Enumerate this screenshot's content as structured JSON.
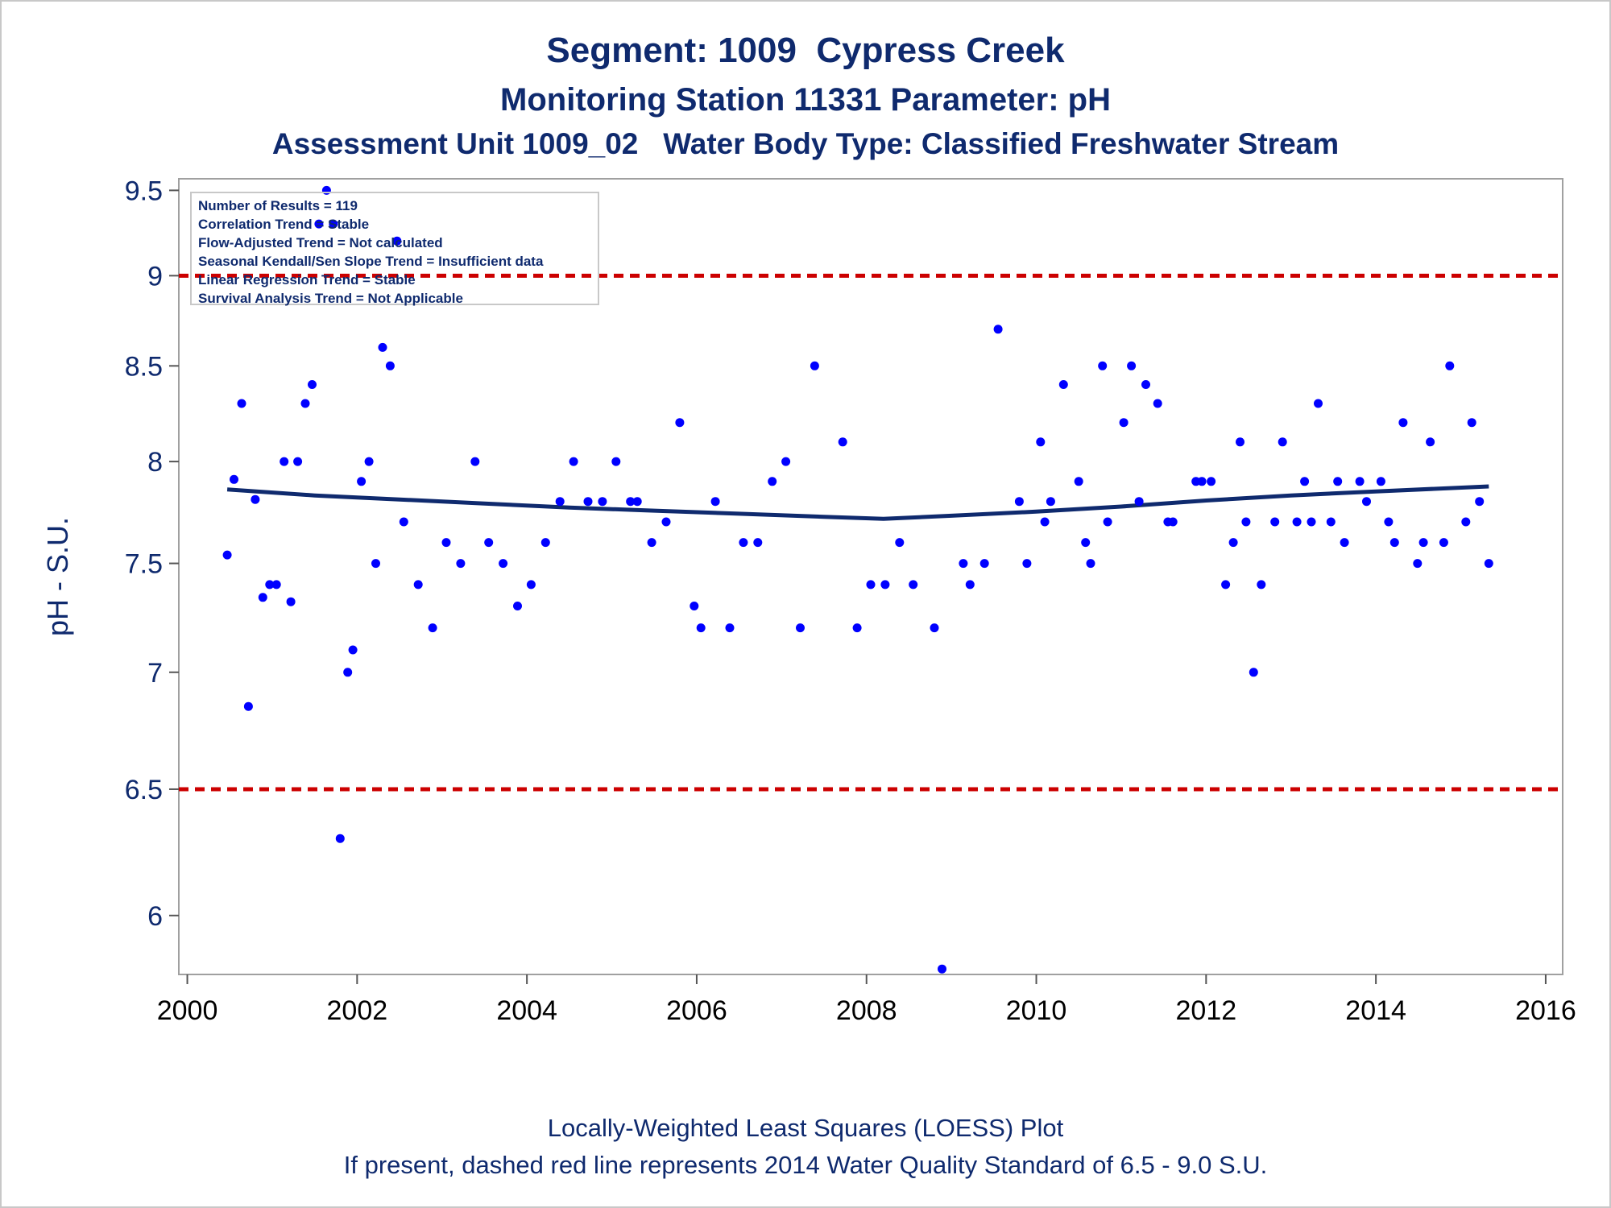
{
  "chart_data": {
    "type": "scatter",
    "title": "Segment: 1009  Cypress Creek",
    "subtitle": "Monitoring Station 11331 Parameter: pH",
    "subtitle2": "Assessment Unit 1009_02   Water Body Type: Classified Freshwater Stream",
    "ylabel": "pH - S.U.",
    "xlabel": "",
    "footnote1": "Locally-Weighted Least Squares (LOESS) Plot",
    "footnote2": "If present, dashed red line represents 2014 Water Quality Standard of 6.5 - 9.0 S.U.",
    "y_scale": "log",
    "xlim": [
      1999.9,
      2016.2
    ],
    "ylim": [
      5.78,
      9.57
    ],
    "x_ticks": [
      2000,
      2002,
      2004,
      2006,
      2008,
      2010,
      2012,
      2014,
      2016
    ],
    "y_ticks": [
      6,
      6.5,
      7,
      7.5,
      8,
      8.5,
      9,
      9.5
    ],
    "y_tick_labels": [
      "6",
      "6.5",
      "7",
      "7.5",
      "8",
      "8.5",
      "9",
      "9.5"
    ],
    "x_tick_labels": [
      "2000",
      "2002",
      "2004",
      "2006",
      "2008",
      "2010",
      "2012",
      "2014",
      "2016"
    ],
    "grid": false,
    "reference_lines": [
      {
        "y": 9.0,
        "style": "dashed",
        "color": "#cc0000"
      },
      {
        "y": 6.5,
        "style": "dashed",
        "color": "#cc0000"
      }
    ],
    "stats_box": {
      "placement": "top-left",
      "lines": [
        "Number of Results = 119",
        "Correlation Trend = Stable",
        "Flow-Adjusted Trend = Not calculated",
        "Seasonal Kendall/Sen Slope Trend = Insufficient data",
        "Linear Regression Trend = Stable",
        "Survival Analysis Trend = Not Applicable"
      ]
    },
    "colors": {
      "points": "#0000ff",
      "loess": "#0f2a6e",
      "standard": "#cc0000",
      "text": "#0f2a6e"
    },
    "series": [
      {
        "type": "scatter",
        "points": [
          [
            2000.47,
            7.54
          ],
          [
            2000.55,
            7.91
          ],
          [
            2000.64,
            8.3
          ],
          [
            2000.72,
            6.85
          ],
          [
            2000.8,
            7.81
          ],
          [
            2000.89,
            7.34
          ],
          [
            2000.97,
            7.4
          ],
          [
            2001.05,
            7.4
          ],
          [
            2001.14,
            8.0
          ],
          [
            2001.22,
            7.32
          ],
          [
            2001.3,
            8.0
          ],
          [
            2001.39,
            8.3
          ],
          [
            2001.47,
            8.4
          ],
          [
            2001.55,
            9.3
          ],
          [
            2001.64,
            9.5
          ],
          [
            2001.72,
            9.3
          ],
          [
            2001.8,
            6.3
          ],
          [
            2001.89,
            7.0
          ],
          [
            2001.95,
            7.1
          ],
          [
            2002.05,
            7.9
          ],
          [
            2002.14,
            8.0
          ],
          [
            2002.22,
            7.5
          ],
          [
            2002.3,
            8.6
          ],
          [
            2002.39,
            8.5
          ],
          [
            2002.47,
            9.2
          ],
          [
            2002.55,
            7.7
          ],
          [
            2002.72,
            7.4
          ],
          [
            2002.89,
            7.2
          ],
          [
            2003.05,
            7.6
          ],
          [
            2003.22,
            7.5
          ],
          [
            2003.39,
            8.0
          ],
          [
            2003.55,
            7.6
          ],
          [
            2003.72,
            7.5
          ],
          [
            2003.89,
            7.3
          ],
          [
            2004.05,
            7.4
          ],
          [
            2004.22,
            7.6
          ],
          [
            2004.39,
            7.8
          ],
          [
            2004.55,
            8.0
          ],
          [
            2004.72,
            7.8
          ],
          [
            2004.89,
            7.8
          ],
          [
            2005.05,
            8.0
          ],
          [
            2005.22,
            7.8
          ],
          [
            2005.3,
            7.8
          ],
          [
            2005.47,
            7.6
          ],
          [
            2005.64,
            7.7
          ],
          [
            2005.8,
            8.2
          ],
          [
            2005.97,
            7.3
          ],
          [
            2006.05,
            7.2
          ],
          [
            2006.22,
            7.8
          ],
          [
            2006.39,
            7.2
          ],
          [
            2006.55,
            7.6
          ],
          [
            2006.72,
            7.6
          ],
          [
            2006.89,
            7.9
          ],
          [
            2007.05,
            8.0
          ],
          [
            2007.22,
            7.2
          ],
          [
            2007.39,
            8.5
          ],
          [
            2007.72,
            8.1
          ],
          [
            2007.89,
            7.2
          ],
          [
            2008.05,
            7.4
          ],
          [
            2008.22,
            7.4
          ],
          [
            2008.39,
            7.6
          ],
          [
            2008.55,
            7.4
          ],
          [
            2008.8,
            7.2
          ],
          [
            2008.89,
            5.8
          ],
          [
            2009.14,
            7.5
          ],
          [
            2009.22,
            7.4
          ],
          [
            2009.39,
            7.5
          ],
          [
            2009.55,
            8.7
          ],
          [
            2009.8,
            7.8
          ],
          [
            2009.89,
            7.5
          ],
          [
            2010.05,
            8.1
          ],
          [
            2010.1,
            7.7
          ],
          [
            2010.17,
            7.8
          ],
          [
            2010.32,
            8.4
          ],
          [
            2010.5,
            7.9
          ],
          [
            2010.58,
            7.6
          ],
          [
            2010.64,
            7.5
          ],
          [
            2010.78,
            8.5
          ],
          [
            2010.84,
            7.7
          ],
          [
            2011.03,
            8.2
          ],
          [
            2011.12,
            8.5
          ],
          [
            2011.21,
            7.8
          ],
          [
            2011.29,
            8.4
          ],
          [
            2011.43,
            8.3
          ],
          [
            2011.55,
            7.7
          ],
          [
            2011.61,
            7.7
          ],
          [
            2011.88,
            7.9
          ],
          [
            2011.95,
            7.9
          ],
          [
            2012.06,
            7.9
          ],
          [
            2012.23,
            7.4
          ],
          [
            2012.32,
            7.6
          ],
          [
            2012.4,
            8.1
          ],
          [
            2012.47,
            7.7
          ],
          [
            2012.56,
            7.0
          ],
          [
            2012.65,
            7.4
          ],
          [
            2012.81,
            7.7
          ],
          [
            2012.9,
            8.1
          ],
          [
            2013.07,
            7.7
          ],
          [
            2013.16,
            7.9
          ],
          [
            2013.24,
            7.7
          ],
          [
            2013.32,
            8.3
          ],
          [
            2013.47,
            7.7
          ],
          [
            2013.55,
            7.9
          ],
          [
            2013.63,
            7.6
          ],
          [
            2013.81,
            7.9
          ],
          [
            2013.89,
            7.8
          ],
          [
            2014.06,
            7.9
          ],
          [
            2014.15,
            7.7
          ],
          [
            2014.22,
            7.6
          ],
          [
            2014.32,
            8.2
          ],
          [
            2014.49,
            7.5
          ],
          [
            2014.56,
            7.6
          ],
          [
            2014.64,
            8.1
          ],
          [
            2014.8,
            7.6
          ],
          [
            2014.87,
            8.5
          ],
          [
            2015.06,
            7.7
          ],
          [
            2015.13,
            8.2
          ],
          [
            2015.22,
            7.8
          ],
          [
            2015.33,
            7.5
          ]
        ]
      },
      {
        "type": "line",
        "points": [
          [
            2000.47,
            7.86
          ],
          [
            2001.5,
            7.83
          ],
          [
            2002.5,
            7.81
          ],
          [
            2003.5,
            7.79
          ],
          [
            2004.5,
            7.77
          ],
          [
            2005.5,
            7.755
          ],
          [
            2006.5,
            7.74
          ],
          [
            2007.5,
            7.725
          ],
          [
            2008.2,
            7.715
          ],
          [
            2009.0,
            7.73
          ],
          [
            2010.0,
            7.75
          ],
          [
            2011.0,
            7.775
          ],
          [
            2012.0,
            7.805
          ],
          [
            2013.0,
            7.83
          ],
          [
            2014.0,
            7.85
          ],
          [
            2015.33,
            7.875
          ]
        ]
      }
    ]
  }
}
